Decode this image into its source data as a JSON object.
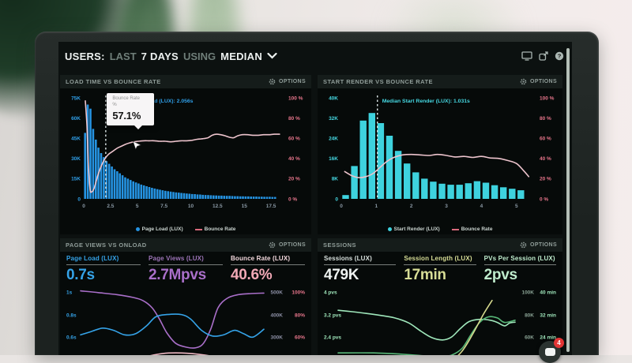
{
  "header": {
    "metric": "USERS:",
    "sep1": "LAST",
    "range": "7 DAYS",
    "sep2": "USING",
    "aggregation": "MEDIAN"
  },
  "icons": {
    "topbar": [
      "display-icon",
      "share-icon",
      "help-icon"
    ],
    "panel_options": "gear-icon",
    "header_dropdown": "chevron-down-icon",
    "chat": "chat-icon"
  },
  "panels": {
    "load_time": {
      "title": "LOAD TIME VS BOUNCE RATE",
      "options_label": "OPTIONS"
    },
    "start_render": {
      "title": "START RENDER VS BOUNCE RATE",
      "options_label": "OPTIONS"
    },
    "page_views": {
      "title": "PAGE VIEWS VS ONLOAD",
      "options_label": "OPTIONS",
      "metrics": [
        {
          "label": "Page Load (LUX)",
          "value": "0.7s",
          "color": "#35a3e8"
        },
        {
          "label": "Page Views (LUX)",
          "value": "2.7Mpvs",
          "color": "#a96fc9",
          "label_color": "#9d74b8"
        },
        {
          "label": "Bounce Rate (LUX)",
          "value": "40.6%",
          "color": "#f2a9b6",
          "label_color": "#f4d9de"
        }
      ]
    },
    "sessions": {
      "title": "SESSIONS",
      "options_label": "OPTIONS",
      "metrics": [
        {
          "label": "Sessions (LUX)",
          "value": "479K",
          "color": "#eef2f0",
          "label_color": "#d8e0dd"
        },
        {
          "label": "Session Length (LUX)",
          "value": "17min",
          "color": "#d7dd96"
        },
        {
          "label": "PVs Per Session (LUX)",
          "value": "2pvs",
          "color": "#bfeccd"
        }
      ]
    }
  },
  "widget": {
    "badge": "4"
  },
  "chart_data": [
    {
      "id": "load_time_vs_bounce_rate",
      "type": "bar+line",
      "title": "LOAD TIME VS BOUNCE RATE",
      "bar_series": "Page Load (LUX)",
      "line_series": "Bounce Rate",
      "bar_color": "#2593e2",
      "line_color": "#edc4cd",
      "x_unit": "s",
      "bin_start": 0,
      "bin_width": 0.25,
      "x_max": 18.6,
      "bar_values_k": [
        49,
        70,
        67,
        52,
        44,
        38,
        34,
        31,
        28,
        26,
        24,
        22,
        20.5,
        19,
        17.5,
        16,
        15,
        14,
        13,
        12.2,
        11.4,
        10.6,
        10,
        9.4,
        8.8,
        8.2,
        7.7,
        7.2,
        6.8,
        6.4,
        6,
        5.7,
        5.4,
        5.1,
        4.8,
        4.6,
        4.4,
        4.2,
        4,
        3.8,
        3.6,
        3.5,
        3.3,
        3.2,
        3,
        2.9,
        2.8,
        2.7,
        2.6,
        2.5,
        2.4,
        2.4,
        2.3,
        2.2,
        2.2,
        2.1,
        2,
        2,
        1.9,
        1.9,
        1.8,
        1.8,
        1.7,
        1.7,
        1.7,
        1.6,
        1.6,
        1.5,
        1.5,
        1.5,
        1.4,
        1.4
      ],
      "left_axis": {
        "max_k": 75,
        "ticks": [
          "75K",
          "60K",
          "45K",
          "30K",
          "15K",
          "0"
        ],
        "color": "#2f9fe8"
      },
      "right_axis": {
        "max_pct": 100,
        "ticks": [
          "100 %",
          "80 %",
          "60 %",
          "40 %",
          "20 %",
          "0 %"
        ],
        "color": "#e8768c"
      },
      "x_ticks": [
        "0",
        "2.5",
        "5",
        "7.5",
        "10",
        "12.5",
        "15",
        "17.5"
      ],
      "x_tick_color": "#8b9aa6",
      "median": {
        "x": 2.056,
        "label": "Median Page Load (LUX): 2.056s",
        "color": "#2f9fe8"
      },
      "line_points_pct": [
        [
          0.15,
          97
        ],
        [
          0.3,
          72
        ],
        [
          0.45,
          30
        ],
        [
          0.6,
          9
        ],
        [
          0.75,
          7
        ],
        [
          0.95,
          10
        ],
        [
          1.15,
          17
        ],
        [
          1.4,
          26
        ],
        [
          1.7,
          34
        ],
        [
          2,
          40
        ],
        [
          2.3,
          44
        ],
        [
          2.7,
          47
        ],
        [
          3.1,
          50
        ],
        [
          3.5,
          52
        ],
        [
          3.9,
          54
        ],
        [
          4.3,
          55.5
        ],
        [
          4.7,
          56.5
        ],
        [
          5.1,
          57
        ],
        [
          5.6,
          57.5
        ],
        [
          6.1,
          57.5
        ],
        [
          6.6,
          57.5
        ],
        [
          7.1,
          57
        ],
        [
          7.6,
          57
        ],
        [
          8.1,
          56.5
        ],
        [
          8.6,
          57
        ],
        [
          9.1,
          57.5
        ],
        [
          9.6,
          57.5
        ],
        [
          10.1,
          58
        ],
        [
          10.6,
          59
        ],
        [
          11.1,
          59.5
        ],
        [
          11.6,
          60.5
        ],
        [
          12,
          63
        ],
        [
          12.4,
          64
        ],
        [
          12.8,
          63.5
        ],
        [
          13.2,
          62.5
        ],
        [
          13.6,
          61
        ],
        [
          14,
          60.5
        ],
        [
          14.4,
          62.5
        ],
        [
          14.8,
          63.5
        ],
        [
          15.3,
          63.5
        ],
        [
          15.8,
          63
        ],
        [
          16.3,
          63
        ],
        [
          16.8,
          63.5
        ],
        [
          17.3,
          63.5
        ],
        [
          17.8,
          64
        ],
        [
          18.3,
          64
        ]
      ],
      "legend": [
        {
          "label": "Page Load (LUX)",
          "marker": "dot",
          "color": "#2593e2"
        },
        {
          "label": "Bounce Rate",
          "marker": "line",
          "color": "#d96a7c"
        }
      ],
      "tooltip": {
        "anchor_x": 4.6,
        "anchor_pct": 57,
        "title": "Bounce Rate",
        "unit": "%",
        "value": "57.1%"
      }
    },
    {
      "id": "start_render_vs_bounce_rate",
      "type": "bar+line",
      "title": "START RENDER VS BOUNCE RATE",
      "bar_series": "Start Render (LUX)",
      "line_series": "Bounce Rate",
      "bar_color": "#3ed2de",
      "line_color": "#edc4cd",
      "x_unit": "s",
      "bin_start": 0,
      "bin_width": 0.25,
      "x_max": 5.5,
      "bar_values_k": [
        1.5,
        13,
        31,
        34,
        30,
        25,
        19,
        14,
        10.5,
        8,
        6.8,
        6,
        5.6,
        5.6,
        6.2,
        7,
        6.4,
        5.4,
        4.6,
        4,
        3.4
      ],
      "left_axis": {
        "max_k": 40,
        "ticks": [
          "40K",
          "32K",
          "24K",
          "16K",
          "8K",
          "0"
        ],
        "color": "#45d8e2"
      },
      "right_axis": {
        "max_pct": 100,
        "ticks": [
          "100 %",
          "80 %",
          "60 %",
          "40 %",
          "20 %",
          "0 %"
        ],
        "color": "#e8768c"
      },
      "x_ticks": [
        "0",
        "1",
        "2",
        "3",
        "4",
        "5"
      ],
      "x_tick_color": "#8b9aa6",
      "median": {
        "x": 1.031,
        "label": "Median Start Render (LUX): 1.031s",
        "color": "#45d8e2"
      },
      "line_points_pct": [
        [
          0.1,
          27
        ],
        [
          0.3,
          23
        ],
        [
          0.5,
          21
        ],
        [
          0.7,
          22
        ],
        [
          0.9,
          25
        ],
        [
          1.1,
          31
        ],
        [
          1.3,
          37
        ],
        [
          1.5,
          41
        ],
        [
          1.75,
          43.5
        ],
        [
          2,
          44
        ],
        [
          2.25,
          43.5
        ],
        [
          2.5,
          43
        ],
        [
          2.75,
          44
        ],
        [
          3,
          43
        ],
        [
          3.25,
          41.5
        ],
        [
          3.5,
          42
        ],
        [
          3.75,
          41
        ],
        [
          4,
          42
        ],
        [
          4.25,
          40.5
        ],
        [
          4.5,
          40
        ],
        [
          4.75,
          38
        ],
        [
          5,
          35
        ],
        [
          5.2,
          28
        ],
        [
          5.35,
          22
        ]
      ],
      "legend": [
        {
          "label": "Start Render (LUX)",
          "marker": "dot",
          "color": "#3ed2de"
        },
        {
          "label": "Bounce Rate",
          "marker": "line",
          "color": "#d96a7c"
        }
      ]
    },
    {
      "id": "page_views_vs_onload",
      "type": "multiline",
      "title": "PAGE VIEWS VS ONLOAD",
      "rows": [
        {
          "left": "1s",
          "right": [
            "500K",
            "100%"
          ]
        },
        {
          "left": "0.8s",
          "right": [
            "400K",
            "80%"
          ]
        },
        {
          "left": "0.6s",
          "right": [
            "300K",
            "60%"
          ]
        }
      ],
      "left_color": "#35a3e8",
      "right_colors": [
        "#8d90a6",
        "#e8768c"
      ],
      "series": [
        {
          "name": "Page Views (LUX)",
          "unit": "K",
          "color": "#a96fc9",
          "row0": 500,
          "row_step": 100,
          "points": [
            [
              0,
              505
            ],
            [
              0.1,
              497
            ],
            [
              0.2,
              488
            ],
            [
              0.28,
              477
            ],
            [
              0.34,
              462
            ],
            [
              0.39,
              430
            ],
            [
              0.43,
              380
            ],
            [
              0.47,
              320
            ],
            [
              0.52,
              272
            ],
            [
              0.58,
              255
            ],
            [
              0.63,
              253
            ],
            [
              0.67,
              272
            ],
            [
              0.71,
              335
            ],
            [
              0.75,
              430
            ],
            [
              0.8,
              472
            ],
            [
              0.86,
              488
            ],
            [
              0.93,
              493
            ],
            [
              1,
              495
            ]
          ]
        },
        {
          "name": "Page Load (LUX)",
          "unit": "s",
          "color": "#35a3e8",
          "row0": 1,
          "row_step": 0.2,
          "points": [
            [
              0,
              0.62
            ],
            [
              0.06,
              0.65
            ],
            [
              0.12,
              0.68
            ],
            [
              0.18,
              0.66
            ],
            [
              0.24,
              0.62
            ],
            [
              0.3,
              0.63
            ],
            [
              0.36,
              0.7
            ],
            [
              0.41,
              0.78
            ],
            [
              0.47,
              0.8
            ],
            [
              0.55,
              0.8
            ],
            [
              0.6,
              0.76
            ],
            [
              0.66,
              0.66
            ],
            [
              0.72,
              0.61
            ],
            [
              0.78,
              0.62
            ],
            [
              0.84,
              0.66
            ],
            [
              0.89,
              0.63
            ],
            [
              0.94,
              0.6
            ],
            [
              1,
              0.67
            ]
          ]
        },
        {
          "name": "Bounce Rate (LUX)",
          "unit": "%",
          "color": "#f0b9c4",
          "row0": 100,
          "row_step": 20,
          "points": [
            [
              0,
              36
            ],
            [
              0.12,
              37
            ],
            [
              0.22,
              38
            ],
            [
              0.3,
              40
            ],
            [
              0.38,
              43.5
            ],
            [
              0.45,
              45.5
            ],
            [
              0.52,
              46
            ],
            [
              0.6,
              45.5
            ],
            [
              0.66,
              44.5
            ],
            [
              0.72,
              43
            ],
            [
              0.78,
              41.5
            ],
            [
              0.85,
              40
            ],
            [
              0.92,
              39.5
            ],
            [
              1,
              40.5
            ]
          ]
        }
      ]
    },
    {
      "id": "sessions",
      "type": "multiline",
      "title": "SESSIONS",
      "rows": [
        {
          "left": "4 pvs",
          "right": [
            "100K",
            "40 min"
          ]
        },
        {
          "left": "3.2 pvs",
          "right": [
            "80K",
            "32 min"
          ]
        },
        {
          "left": "2.4 pvs",
          "right": [
            "60K",
            "24 min"
          ]
        }
      ],
      "left_color": "#9fe7bb",
      "right_colors": [
        "#8aa395",
        "#9fe7bb"
      ],
      "series": [
        {
          "name": "PVs Per Session (LUX)",
          "unit": "pvs",
          "color": "#9fe7bb",
          "row0": 4,
          "row_step": 0.8,
          "points": [
            [
              0,
              3.35
            ],
            [
              0.08,
              3.3
            ],
            [
              0.16,
              3.24
            ],
            [
              0.24,
              3.17
            ],
            [
              0.32,
              3.08
            ],
            [
              0.4,
              2.9
            ],
            [
              0.47,
              2.6
            ],
            [
              0.53,
              2.38
            ],
            [
              0.59,
              2.3
            ],
            [
              0.64,
              2.4
            ],
            [
              0.69,
              2.7
            ],
            [
              0.74,
              2.95
            ],
            [
              0.8,
              3.03
            ],
            [
              0.86,
              3.0
            ],
            [
              0.9,
              2.92
            ],
            [
              0.94,
              2.8
            ],
            [
              0.97,
              2.9
            ],
            [
              1,
              2.93
            ]
          ]
        },
        {
          "name": "Sessions (LUX)",
          "unit": "K",
          "color": "#58b878",
          "row0": 100,
          "row_step": 20,
          "points": [
            [
              0,
              46
            ],
            [
              0.2,
              46
            ],
            [
              0.35,
              45
            ],
            [
              0.48,
              43.5
            ],
            [
              0.58,
              43
            ],
            [
              0.64,
              44
            ],
            [
              0.7,
              50
            ],
            [
              0.75,
              62
            ],
            [
              0.8,
              73
            ],
            [
              0.85,
              78
            ],
            [
              0.9,
              77
            ],
            [
              0.94,
              73
            ],
            [
              1,
              75
            ]
          ]
        },
        {
          "name": "Session Length (LUX)",
          "unit": "min",
          "color": "#d5d98d",
          "row0": 40,
          "row_step": 8,
          "points": [
            [
              0,
              13.5
            ],
            [
              0.07,
              15
            ],
            [
              0.14,
              16.5
            ],
            [
              0.2,
              17
            ],
            [
              0.26,
              15.5
            ],
            [
              0.32,
              14
            ],
            [
              0.4,
              13
            ],
            [
              0.48,
              12.8
            ],
            [
              0.56,
              13.2
            ],
            [
              0.63,
              15
            ],
            [
              0.7,
              19
            ],
            [
              0.76,
              25
            ],
            [
              0.82,
              32
            ],
            [
              0.87,
              37
            ]
          ]
        }
      ]
    }
  ]
}
